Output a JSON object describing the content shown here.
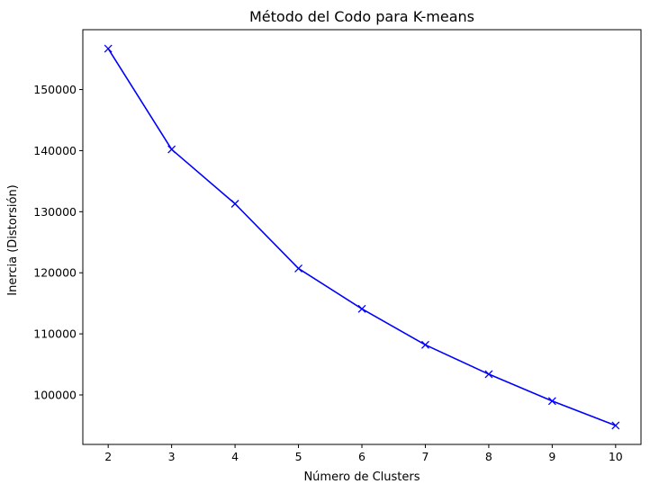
{
  "chart_data": {
    "type": "line",
    "title": "Método del Codo para K-means",
    "xlabel": "Número de Clusters",
    "ylabel": "Inercia (Distorsión)",
    "x": [
      2,
      3,
      4,
      5,
      6,
      7,
      8,
      9,
      10
    ],
    "series": [
      {
        "values": [
          156700,
          140200,
          131300,
          120700,
          114100,
          108200,
          103400,
          99000,
          95000
        ],
        "color": "#0000ff",
        "marker": "x"
      }
    ],
    "xticks": [
      "2",
      "3",
      "4",
      "5",
      "6",
      "7",
      "8",
      "9",
      "10"
    ],
    "yticks": [
      "100000",
      "110000",
      "120000",
      "130000",
      "140000",
      "150000"
    ],
    "xlim": [
      1.6,
      10.4
    ],
    "ylim": [
      91900,
      159800
    ],
    "grid": false,
    "legend": false
  }
}
